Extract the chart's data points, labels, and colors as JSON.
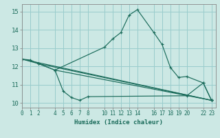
{
  "xlabel": "Humidex (Indice chaleur)",
  "bg_color": "#cce8e4",
  "grid_color": "#99cccc",
  "line_color": "#1a6b5a",
  "spine_color": "#888888",
  "xlim": [
    0,
    23.5
  ],
  "ylim": [
    9.75,
    15.4
  ],
  "xticks": [
    0,
    1,
    2,
    4,
    5,
    6,
    7,
    8,
    10,
    11,
    12,
    13,
    14,
    16,
    17,
    18,
    19,
    20,
    22,
    23
  ],
  "yticks": [
    10,
    11,
    12,
    13,
    14,
    15
  ],
  "lines": [
    {
      "x": [
        0,
        1,
        2,
        4,
        10,
        11,
        12,
        13,
        14,
        16,
        17,
        18,
        19,
        20,
        22,
        23
      ],
      "y": [
        12.4,
        12.35,
        12.15,
        11.8,
        13.05,
        13.5,
        13.85,
        14.8,
        15.1,
        13.85,
        13.2,
        11.95,
        11.4,
        11.45,
        11.1,
        10.15
      ]
    },
    {
      "x": [
        0,
        2,
        4,
        5,
        6,
        7,
        8,
        20,
        22,
        23
      ],
      "y": [
        12.4,
        12.15,
        11.8,
        10.65,
        10.3,
        10.15,
        10.35,
        10.4,
        11.1,
        10.15
      ]
    },
    {
      "x": [
        0,
        23
      ],
      "y": [
        12.4,
        10.15
      ]
    },
    {
      "x": [
        2,
        23
      ],
      "y": [
        12.15,
        10.15
      ]
    },
    {
      "x": [
        4,
        23
      ],
      "y": [
        11.8,
        10.15
      ]
    }
  ]
}
